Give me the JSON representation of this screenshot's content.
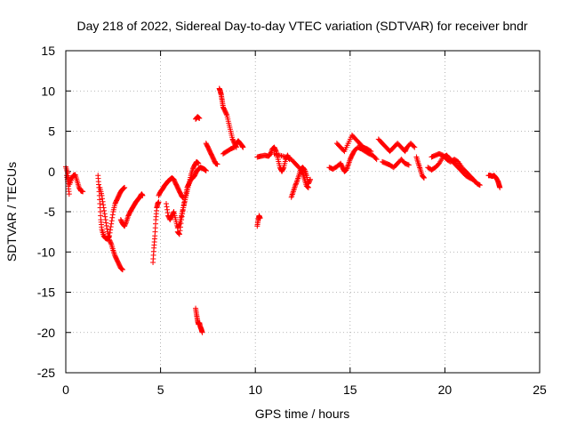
{
  "chart_data": {
    "type": "scatter",
    "title": "Day 218 of 2022, Sidereal Day-to-day VTEC variation (SDTVAR) for receiver bndr",
    "xlabel": "GPS time / hours",
    "ylabel": "SDTVAR / TECUs",
    "xlim": [
      0,
      25
    ],
    "ylim": [
      -25,
      15
    ],
    "xticks": [
      0,
      5,
      10,
      15,
      20,
      25
    ],
    "yticks": [
      -25,
      -20,
      -15,
      -10,
      -5,
      0,
      5,
      10,
      15
    ],
    "xtick_labels": [
      "0",
      "5",
      "10",
      "15",
      "20",
      "25"
    ],
    "ytick_labels": [
      "-25",
      "-20",
      "-15",
      "-10",
      "-5",
      "0",
      "5",
      "10",
      "15"
    ],
    "grid": true,
    "marker": "+",
    "color": "#ff0000",
    "segments": [
      {
        "points": [
          [
            0.0,
            0.6
          ],
          [
            0.1,
            -0.2
          ],
          [
            0.2,
            -1.6
          ],
          [
            0.3,
            -0.9
          ],
          [
            0.4,
            -0.5
          ],
          [
            0.5,
            -0.4
          ],
          [
            0.6,
            -1.2
          ],
          [
            0.7,
            -2.0
          ],
          [
            0.8,
            -2.4
          ],
          [
            0.9,
            -2.5
          ]
        ]
      },
      {
        "points": [
          [
            0.05,
            -0.5
          ],
          [
            0.12,
            -1.5
          ],
          [
            0.18,
            -2.8
          ]
        ]
      },
      {
        "points": [
          [
            1.7,
            -0.5
          ],
          [
            1.75,
            -2.0
          ],
          [
            1.8,
            -4.0
          ],
          [
            1.85,
            -6.0
          ],
          [
            1.9,
            -7.2
          ],
          [
            2.0,
            -8.0
          ],
          [
            2.1,
            -8.3
          ],
          [
            2.2,
            -8.4
          ],
          [
            2.3,
            -8.0
          ],
          [
            2.4,
            -6.5
          ],
          [
            2.5,
            -5.0
          ],
          [
            2.6,
            -4.0
          ],
          [
            2.7,
            -3.5
          ],
          [
            2.8,
            -3.0
          ],
          [
            2.9,
            -2.5
          ],
          [
            3.0,
            -2.2
          ],
          [
            3.1,
            -2.0
          ]
        ]
      },
      {
        "points": [
          [
            1.8,
            -2.0
          ],
          [
            1.9,
            -3.0
          ],
          [
            2.0,
            -4.5
          ],
          [
            2.1,
            -6.0
          ],
          [
            2.2,
            -7.5
          ],
          [
            2.3,
            -8.5
          ],
          [
            2.4,
            -9.0
          ],
          [
            2.5,
            -9.8
          ],
          [
            2.6,
            -10.5
          ],
          [
            2.7,
            -11.0
          ],
          [
            2.8,
            -11.5
          ],
          [
            2.9,
            -12.0
          ],
          [
            3.0,
            -12.2
          ]
        ]
      },
      {
        "points": [
          [
            2.9,
            -6.0
          ],
          [
            3.0,
            -6.5
          ],
          [
            3.1,
            -6.8
          ],
          [
            3.2,
            -6.2
          ],
          [
            3.3,
            -5.5
          ],
          [
            3.4,
            -5.0
          ],
          [
            3.5,
            -4.6
          ],
          [
            3.6,
            -4.2
          ],
          [
            3.7,
            -3.8
          ],
          [
            3.8,
            -3.5
          ],
          [
            3.9,
            -3.2
          ],
          [
            4.0,
            -2.8
          ],
          [
            4.05,
            -3.0
          ]
        ]
      },
      {
        "points": [
          [
            4.6,
            -11.3
          ],
          [
            4.65,
            -9.5
          ],
          [
            4.7,
            -8.0
          ],
          [
            4.75,
            -6.0
          ],
          [
            4.8,
            -4.5
          ],
          [
            4.85,
            -4.0
          ],
          [
            4.9,
            -3.8
          ]
        ]
      },
      {
        "points": [
          [
            4.9,
            -3.0
          ],
          [
            5.0,
            -2.5
          ],
          [
            5.1,
            -2.2
          ],
          [
            5.2,
            -1.8
          ],
          [
            5.3,
            -1.5
          ],
          [
            5.4,
            -1.2
          ],
          [
            5.5,
            -1.0
          ],
          [
            5.6,
            -0.8
          ],
          [
            5.7,
            -1.0
          ],
          [
            5.8,
            -1.5
          ],
          [
            5.9,
            -2.0
          ],
          [
            6.0,
            -2.5
          ],
          [
            6.1,
            -3.0
          ],
          [
            6.2,
            -3.3
          ]
        ]
      },
      {
        "points": [
          [
            5.3,
            -4.0
          ],
          [
            5.4,
            -5.5
          ],
          [
            5.5,
            -6.0
          ],
          [
            5.6,
            -5.5
          ],
          [
            5.7,
            -5.0
          ],
          [
            5.8,
            -6.0
          ],
          [
            5.9,
            -7.0
          ],
          [
            6.0,
            -6.5
          ],
          [
            6.1,
            -5.5
          ],
          [
            6.2,
            -4.5
          ],
          [
            6.3,
            -3.5
          ],
          [
            6.4,
            -2.5
          ],
          [
            6.5,
            -1.5
          ],
          [
            6.6,
            -0.5
          ],
          [
            6.7,
            0.3
          ],
          [
            6.8,
            0.8
          ],
          [
            6.9,
            1.2
          ],
          [
            7.0,
            1.0
          ]
        ]
      },
      {
        "points": [
          [
            5.9,
            -7.5
          ],
          [
            6.0,
            -7.8
          ],
          [
            6.1,
            -6.0
          ],
          [
            6.2,
            -4.5
          ],
          [
            6.3,
            -3.2
          ],
          [
            6.4,
            -2.0
          ],
          [
            6.5,
            -1.5
          ],
          [
            6.6,
            -1.0
          ],
          [
            6.7,
            -0.8
          ],
          [
            6.8,
            -0.5
          ],
          [
            6.9,
            0.0
          ],
          [
            7.0,
            0.3
          ],
          [
            7.1,
            0.5
          ],
          [
            7.2,
            0.4
          ],
          [
            7.3,
            0.3
          ],
          [
            7.4,
            0.1
          ]
        ]
      },
      {
        "points": [
          [
            6.85,
            6.5
          ],
          [
            6.95,
            6.8
          ],
          [
            7.05,
            6.6
          ]
        ]
      },
      {
        "points": [
          [
            6.85,
            -17.0
          ],
          [
            6.9,
            -17.8
          ],
          [
            6.95,
            -18.5
          ],
          [
            7.0,
            -19.0
          ],
          [
            7.05,
            -18.8
          ],
          [
            7.1,
            -19.3
          ],
          [
            7.15,
            -19.6
          ],
          [
            7.2,
            -20.0
          ]
        ]
      },
      {
        "points": [
          [
            7.4,
            3.5
          ],
          [
            7.5,
            3.0
          ],
          [
            7.6,
            2.5
          ],
          [
            7.7,
            2.0
          ],
          [
            7.8,
            1.5
          ],
          [
            7.9,
            1.0
          ],
          [
            8.0,
            0.9
          ]
        ]
      },
      {
        "points": [
          [
            8.1,
            10.3
          ],
          [
            8.15,
            10.0
          ],
          [
            8.2,
            9.5
          ],
          [
            8.25,
            8.8
          ],
          [
            8.3,
            8.0
          ],
          [
            8.4,
            7.5
          ],
          [
            8.5,
            7.0
          ],
          [
            8.6,
            6.0
          ],
          [
            8.7,
            5.0
          ],
          [
            8.8,
            4.0
          ],
          [
            8.9,
            3.5
          ],
          [
            9.0,
            3.0
          ]
        ]
      },
      {
        "points": [
          [
            8.3,
            2.2
          ],
          [
            8.5,
            2.5
          ],
          [
            8.7,
            2.8
          ],
          [
            8.9,
            3.0
          ],
          [
            9.0,
            3.5
          ],
          [
            9.1,
            3.8
          ],
          [
            9.2,
            3.5
          ],
          [
            9.3,
            3.2
          ],
          [
            9.35,
            3.0
          ]
        ]
      },
      {
        "points": [
          [
            10.1,
            -6.8
          ],
          [
            10.15,
            -6.0
          ],
          [
            10.2,
            -5.5
          ],
          [
            10.25,
            -5.8
          ]
        ]
      },
      {
        "points": [
          [
            10.1,
            1.8
          ],
          [
            10.3,
            1.9
          ],
          [
            10.5,
            2.0
          ],
          [
            10.7,
            1.9
          ],
          [
            10.8,
            2.2
          ],
          [
            10.9,
            2.8
          ],
          [
            11.0,
            3.0
          ],
          [
            11.1,
            2.5
          ],
          [
            11.2,
            1.5
          ],
          [
            11.3,
            0.5
          ],
          [
            11.4,
            0.0
          ],
          [
            11.5,
            0.5
          ],
          [
            11.6,
            1.5
          ],
          [
            11.7,
            2.0
          ],
          [
            11.8,
            1.5
          ]
        ]
      },
      {
        "points": [
          [
            11.9,
            -3.2
          ],
          [
            12.0,
            -2.5
          ],
          [
            12.1,
            -1.8
          ],
          [
            12.2,
            -1.2
          ],
          [
            12.3,
            -0.5
          ],
          [
            12.4,
            0.3
          ],
          [
            12.5,
            0.5
          ],
          [
            12.6,
            0.2
          ],
          [
            12.7,
            -0.5
          ],
          [
            12.8,
            -1.5
          ],
          [
            12.9,
            -1.0
          ]
        ]
      },
      {
        "points": [
          [
            11.0,
            2.2
          ],
          [
            11.3,
            2.0
          ],
          [
            11.6,
            1.8
          ],
          [
            11.9,
            1.5
          ],
          [
            12.1,
            1.0
          ],
          [
            12.3,
            0.5
          ],
          [
            12.5,
            -0.2
          ],
          [
            12.6,
            -1.0
          ],
          [
            12.7,
            -1.8
          ],
          [
            12.8,
            -2.0
          ]
        ]
      },
      {
        "points": [
          [
            13.9,
            0.5
          ],
          [
            14.1,
            0.3
          ],
          [
            14.3,
            0.6
          ],
          [
            14.5,
            1.0
          ],
          [
            14.6,
            0.5
          ],
          [
            14.7,
            0.0
          ],
          [
            14.8,
            0.2
          ],
          [
            14.9,
            0.8
          ],
          [
            15.0,
            1.5
          ],
          [
            15.1,
            2.0
          ],
          [
            15.2,
            2.5
          ],
          [
            15.4,
            3.0
          ],
          [
            15.6,
            2.8
          ],
          [
            15.8,
            2.5
          ],
          [
            16.0,
            2.2
          ],
          [
            16.2,
            2.0
          ],
          [
            16.4,
            1.5
          ]
        ]
      },
      {
        "points": [
          [
            14.3,
            3.5
          ],
          [
            14.5,
            3.0
          ],
          [
            14.7,
            2.5
          ],
          [
            14.9,
            3.5
          ],
          [
            15.1,
            4.5
          ],
          [
            15.3,
            4.0
          ],
          [
            15.5,
            3.5
          ],
          [
            15.7,
            3.0
          ],
          [
            15.9,
            2.8
          ],
          [
            16.1,
            2.5
          ]
        ]
      },
      {
        "points": [
          [
            16.5,
            4.0
          ],
          [
            16.7,
            3.5
          ],
          [
            16.9,
            3.0
          ],
          [
            17.1,
            2.5
          ],
          [
            17.3,
            3.0
          ],
          [
            17.5,
            3.5
          ],
          [
            17.7,
            3.0
          ],
          [
            17.9,
            2.5
          ],
          [
            18.0,
            3.0
          ],
          [
            18.2,
            3.5
          ],
          [
            18.4,
            3.0
          ]
        ]
      },
      {
        "points": [
          [
            16.7,
            1.2
          ],
          [
            16.9,
            1.0
          ],
          [
            17.1,
            0.8
          ],
          [
            17.3,
            0.5
          ],
          [
            17.5,
            1.0
          ],
          [
            17.7,
            1.5
          ],
          [
            17.9,
            1.0
          ],
          [
            18.1,
            0.8
          ]
        ]
      },
      {
        "points": [
          [
            18.5,
            1.8
          ],
          [
            18.6,
            1.0
          ],
          [
            18.7,
            0.3
          ],
          [
            18.8,
            -0.5
          ],
          [
            18.9,
            -0.8
          ]
        ]
      },
      {
        "points": [
          [
            19.1,
            0.5
          ],
          [
            19.3,
            0.2
          ],
          [
            19.5,
            0.5
          ],
          [
            19.7,
            1.0
          ],
          [
            19.9,
            1.8
          ],
          [
            20.1,
            2.0
          ],
          [
            20.3,
            1.5
          ],
          [
            20.5,
            1.0
          ],
          [
            20.7,
            0.5
          ],
          [
            20.9,
            0.0
          ],
          [
            21.1,
            -0.5
          ],
          [
            21.3,
            -0.8
          ],
          [
            21.5,
            -1.0
          ],
          [
            21.7,
            -1.5
          ],
          [
            21.85,
            -1.7
          ]
        ]
      },
      {
        "points": [
          [
            19.3,
            1.8
          ],
          [
            19.5,
            2.0
          ],
          [
            19.7,
            2.2
          ],
          [
            19.9,
            2.0
          ],
          [
            20.1,
            1.5
          ],
          [
            20.3,
            1.2
          ],
          [
            20.5,
            1.5
          ],
          [
            20.7,
            1.2
          ],
          [
            20.9,
            0.5
          ],
          [
            21.1,
            0.0
          ],
          [
            21.3,
            -0.5
          ],
          [
            21.5,
            -1.0
          ],
          [
            21.6,
            -1.3
          ]
        ]
      },
      {
        "points": [
          [
            22.3,
            -0.5
          ],
          [
            22.4,
            -0.5
          ],
          [
            22.5,
            -0.6
          ],
          [
            22.6,
            -0.5
          ],
          [
            22.7,
            -0.8
          ],
          [
            22.8,
            -1.2
          ],
          [
            22.85,
            -1.6
          ],
          [
            22.9,
            -2.0
          ]
        ]
      }
    ]
  }
}
